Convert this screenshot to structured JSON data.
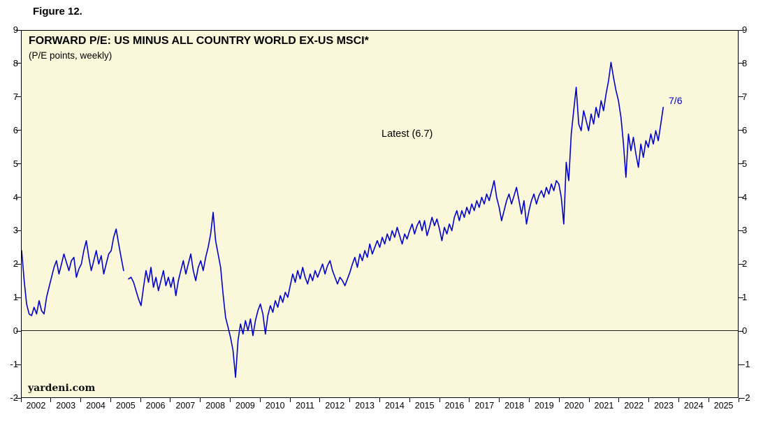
{
  "figure_label": "Figure 12.",
  "chart_data": {
    "type": "line",
    "title": "FORWARD P/E: US MINUS ALL COUNTRY WORLD EX-US MSCI*",
    "subtitle": "(P/E points, weekly)",
    "source": "yardeni.com",
    "latest": {
      "label": "Latest (6.7)",
      "value": 6.7,
      "date_label": "7/6"
    },
    "line_color": "#0000CC",
    "plot_bg": "#FBF7DA",
    "x_range": [
      2002,
      2026
    ],
    "ylim": [
      -2,
      9
    ],
    "y_ticks": [
      9,
      8,
      7,
      6,
      5,
      4,
      3,
      2,
      1,
      0,
      -1,
      -2
    ],
    "x_tick_years": [
      2002,
      2003,
      2004,
      2005,
      2006,
      2007,
      2008,
      2009,
      2010,
      2011,
      2012,
      2013,
      2014,
      2015,
      2016,
      2017,
      2018,
      2019,
      2020,
      2021,
      2022,
      2023,
      2024,
      2025
    ],
    "grid": "none",
    "legend": "none",
    "zero_reference_line": true,
    "series": [
      {
        "name": "US forward P/E minus All Country World ex-US forward P/E",
        "x_unit": "decimal_year",
        "monthly_values": {
          "2002": [
            2.4,
            1.5,
            0.8,
            0.5,
            0.45,
            0.7,
            0.5,
            0.9,
            0.6,
            0.5,
            1.0,
            1.3
          ],
          "2003": [
            1.6,
            1.9,
            2.1,
            1.7,
            2.0,
            2.3,
            2.05,
            1.8,
            2.1,
            2.2,
            1.6,
            1.85
          ],
          "2004": [
            2.0,
            2.4,
            2.7,
            2.2,
            1.8,
            2.1,
            2.4,
            2.0,
            2.25,
            1.7,
            2.0,
            2.3
          ],
          "2005": [
            2.4,
            2.8,
            3.05,
            2.6,
            2.2,
            1.8,
            null,
            1.55,
            1.6,
            1.45,
            1.2,
            0.95
          ],
          "2006": [
            0.75,
            1.3,
            1.8,
            1.45,
            1.9,
            1.3,
            1.6,
            1.2,
            1.5,
            1.8,
            1.35,
            1.6
          ],
          "2007": [
            1.3,
            1.6,
            1.05,
            1.5,
            1.8,
            2.1,
            1.7,
            2.0,
            2.3,
            1.8,
            1.5,
            1.9
          ],
          "2008": [
            2.1,
            1.8,
            2.2,
            2.5,
            2.9,
            3.55,
            2.7,
            2.3,
            1.9,
            1.1,
            0.4,
            0.1
          ],
          "2009": [
            -0.2,
            -0.6,
            -1.4,
            -0.3,
            0.2,
            -0.1,
            0.3,
            0.0,
            0.35,
            -0.15,
            0.3,
            0.6
          ],
          "2010": [
            0.8,
            0.5,
            -0.1,
            0.45,
            0.75,
            0.55,
            0.9,
            0.7,
            1.05,
            0.85,
            1.15,
            1.0
          ],
          "2011": [
            1.35,
            1.7,
            1.45,
            1.8,
            1.55,
            1.9,
            1.6,
            1.4,
            1.7,
            1.5,
            1.8,
            1.6
          ],
          "2012": [
            1.8,
            2.0,
            1.7,
            1.95,
            2.1,
            1.8,
            1.6,
            1.4,
            1.6,
            1.5,
            1.35,
            1.55
          ],
          "2013": [
            1.75,
            2.0,
            2.2,
            1.9,
            2.3,
            2.1,
            2.4,
            2.2,
            2.6,
            2.3,
            2.5,
            2.7
          ],
          "2014": [
            2.5,
            2.8,
            2.6,
            2.9,
            2.7,
            3.0,
            2.8,
            3.1,
            2.85,
            2.6,
            2.9,
            2.75
          ],
          "2015": [
            3.0,
            3.2,
            2.9,
            3.15,
            3.3,
            3.0,
            3.3,
            2.85,
            3.1,
            3.4,
            3.15,
            3.35
          ],
          "2016": [
            3.05,
            2.7,
            3.1,
            2.9,
            3.2,
            3.0,
            3.4,
            3.6,
            3.3,
            3.6,
            3.4,
            3.7
          ],
          "2017": [
            3.5,
            3.8,
            3.6,
            3.9,
            3.7,
            4.0,
            3.8,
            4.1,
            3.9,
            4.2,
            4.5,
            4.0
          ],
          "2018": [
            3.7,
            3.3,
            3.6,
            3.9,
            4.1,
            3.8,
            4.05,
            4.3,
            3.9,
            3.5,
            3.9,
            3.2
          ],
          "2019": [
            3.6,
            3.9,
            4.1,
            3.8,
            4.05,
            4.2,
            4.0,
            4.3,
            4.1,
            4.4,
            4.2,
            4.5
          ],
          "2020": [
            4.4,
            4.0,
            3.2,
            5.05,
            4.5,
            5.9,
            6.6,
            7.3,
            6.2,
            6.0,
            6.6,
            6.3
          ],
          "2021": [
            6.0,
            6.5,
            6.2,
            6.7,
            6.4,
            6.9,
            6.6,
            7.1,
            7.5,
            8.05,
            7.6,
            7.2
          ],
          "2022": [
            6.9,
            6.4,
            5.6,
            4.6,
            5.9,
            5.4,
            5.8,
            5.3,
            4.9,
            5.6,
            5.2,
            5.7
          ],
          "2023": [
            5.5,
            5.9,
            5.6,
            6.0,
            5.7,
            6.2,
            6.7
          ]
        }
      }
    ]
  }
}
